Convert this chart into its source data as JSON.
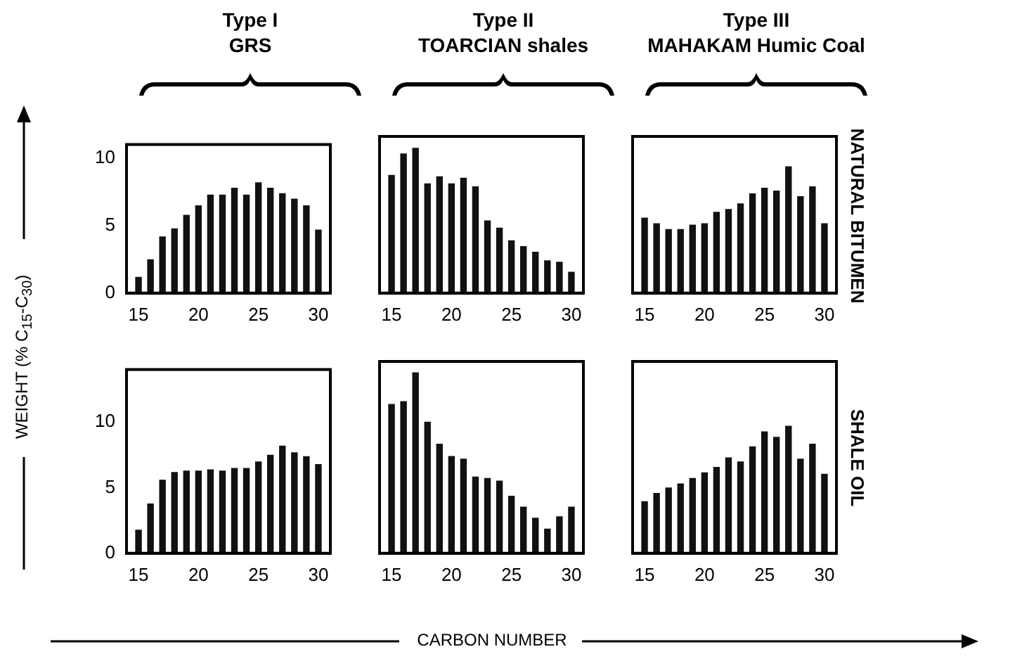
{
  "chart_data": [
    {
      "type": "bar",
      "title": "Type I",
      "subtitle": "GRS",
      "ylabel": "WEIGHT (% C$_{15}$-C$_{30}$)",
      "color": "#111111",
      "x": [
        15,
        16,
        17,
        18,
        19,
        20,
        21,
        22,
        23,
        24,
        25,
        26,
        27,
        28,
        29,
        30
      ],
      "values": [
        1.2,
        2.5,
        4.2,
        4.8,
        5.8,
        6.5,
        7.3,
        7.3,
        7.8,
        7.3,
        8.2,
        7.8,
        7.4,
        7.0,
        6.5,
        4.7
      ],
      "xlim": [
        14,
        31
      ],
      "xticks": [
        15,
        20,
        25,
        30
      ],
      "ylim": [
        0,
        11
      ],
      "yticks": [
        0,
        5,
        10
      ]
    },
    {
      "type": "bar",
      "title": "Type II",
      "subtitle": "TOARCIAN shales",
      "color": "#111111",
      "x": [
        15,
        16,
        17,
        18,
        19,
        20,
        21,
        22,
        23,
        24,
        25,
        26,
        27,
        28,
        29,
        30
      ],
      "values": [
        8.3,
        9.8,
        10.2,
        7.7,
        8.2,
        7.7,
        8.1,
        7.5,
        5.1,
        4.6,
        3.7,
        3.3,
        2.9,
        2.3,
        2.2,
        1.5
      ],
      "xlim": [
        14,
        31
      ],
      "xticks": [
        15,
        20,
        25,
        30
      ],
      "ylim": [
        0,
        11
      ],
      "yticks": [
        0,
        5,
        10
      ],
      "tick_labels": "x"
    },
    {
      "type": "bar",
      "title": "Type III",
      "subtitle": "MAHAKAM Humic Coal",
      "y2label": "NATURAL BITUMEN",
      "color": "#111111",
      "x": [
        15,
        16,
        17,
        18,
        19,
        20,
        21,
        22,
        23,
        24,
        25,
        26,
        27,
        28,
        29,
        30
      ],
      "values": [
        5.3,
        4.9,
        4.5,
        4.5,
        4.8,
        4.9,
        5.7,
        5.9,
        6.3,
        7.0,
        7.4,
        7.2,
        8.9,
        6.8,
        7.5,
        4.9
      ],
      "xlim": [
        14,
        31
      ],
      "xticks": [
        15,
        20,
        25,
        30
      ],
      "ylim": [
        0,
        11
      ],
      "yticks": [
        0,
        5,
        10
      ],
      "tick_labels": "x"
    },
    {
      "type": "bar",
      "color": "#111111",
      "x": [
        15,
        16,
        17,
        18,
        19,
        20,
        21,
        22,
        23,
        24,
        25,
        26,
        27,
        28,
        29,
        30
      ],
      "values": [
        1.8,
        3.8,
        5.6,
        6.2,
        6.3,
        6.3,
        6.4,
        6.3,
        6.5,
        6.5,
        7.0,
        7.5,
        8.2,
        7.7,
        7.4,
        6.8
      ],
      "xlim": [
        14,
        31
      ],
      "xticks": [
        15,
        20,
        25,
        30
      ],
      "ylim": [
        0,
        14
      ],
      "yticks": [
        0,
        5,
        10
      ]
    },
    {
      "type": "bar",
      "xlabel": "CARBON NUMBER",
      "color": "#111111",
      "x": [
        15,
        16,
        17,
        18,
        19,
        20,
        21,
        22,
        23,
        24,
        25,
        26,
        27,
        28,
        29,
        30
      ],
      "values": [
        10.9,
        11.1,
        13.2,
        9.6,
        8.0,
        7.1,
        6.9,
        5.6,
        5.5,
        5.3,
        4.2,
        3.4,
        2.6,
        1.8,
        2.7,
        3.4
      ],
      "xlim": [
        14,
        31
      ],
      "xticks": [
        15,
        20,
        25,
        30
      ],
      "ylim": [
        0,
        14
      ],
      "yticks": [
        0,
        5,
        10
      ],
      "tick_labels": "x"
    },
    {
      "type": "bar",
      "y2label": "SHALE OIL",
      "color": "#111111",
      "x": [
        15,
        16,
        17,
        18,
        19,
        20,
        21,
        22,
        23,
        24,
        25,
        26,
        27,
        28,
        29,
        30
      ],
      "values": [
        3.8,
        4.4,
        4.8,
        5.1,
        5.5,
        5.9,
        6.3,
        7.0,
        6.7,
        7.8,
        8.9,
        8.5,
        9.3,
        6.9,
        8.0,
        5.8
      ],
      "xlim": [
        14,
        31
      ],
      "xticks": [
        15,
        20,
        25,
        30
      ],
      "ylim": [
        0,
        14
      ],
      "yticks": [
        0,
        5,
        10
      ],
      "tick_labels": "x"
    }
  ]
}
